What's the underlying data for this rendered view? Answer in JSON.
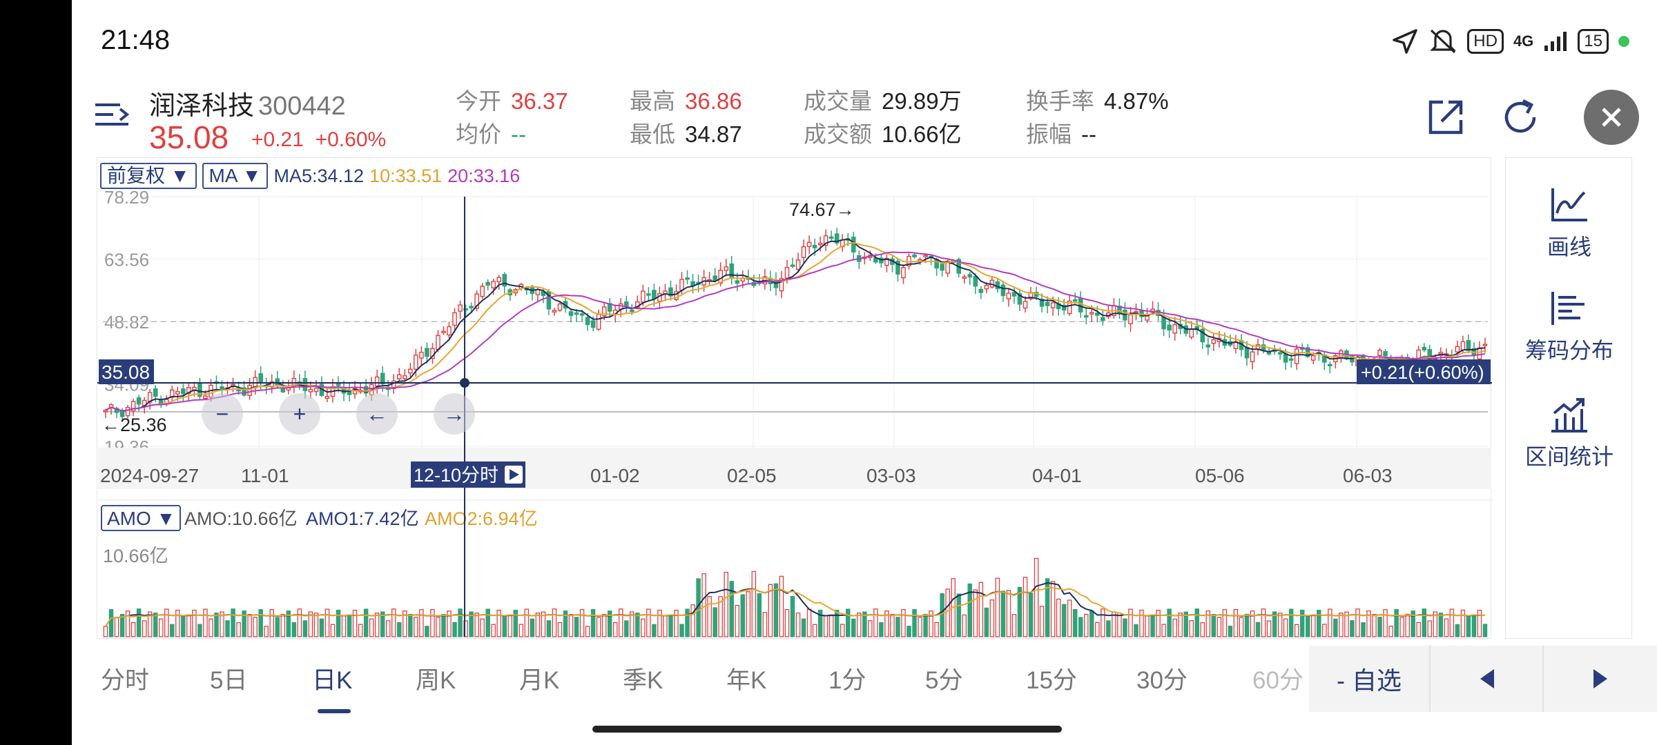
{
  "status_bar": {
    "time": "21:48",
    "network": "4G",
    "hd": "HD",
    "battery": "15"
  },
  "header": {
    "stock_name": "润泽科技",
    "stock_code": "300442",
    "price": "35.08",
    "change": "+0.21",
    "change_pct": "+0.60%",
    "stats": [
      {
        "label": "今开",
        "value": "36.37"
      },
      {
        "label": "均价",
        "value": "--"
      },
      {
        "label": "最高",
        "value": "36.86"
      },
      {
        "label": "最低",
        "value": "34.87"
      },
      {
        "label": "成交量",
        "value": "29.89万"
      },
      {
        "label": "成交额",
        "value": "10.66亿"
      },
      {
        "label": "换手率",
        "value": "4.87%"
      },
      {
        "label": "振幅",
        "value": "--"
      }
    ]
  },
  "chart_toolbar": {
    "adjust": "前复权 ▼",
    "indicator": "MA ▼",
    "ma5": "MA5:34.12",
    "ma10": "10:33.51",
    "ma20": "20:33.16"
  },
  "main_chart": {
    "y_ticks": [
      "78.29",
      "63.56",
      "48.82",
      "34.09",
      "19.36"
    ],
    "x_ticks": [
      "2024-09-27",
      "11-01",
      "12",
      "01-02",
      "02-05",
      "03-03",
      "04-01",
      "05-06",
      "06-03"
    ],
    "cursor_price": "35.08",
    "cursor_change": "+0.21(+0.60%)",
    "cursor_date": "12-10分时",
    "high_annotation": "74.67→",
    "low_annotation": "←25.36",
    "zoom_out": "−",
    "zoom_in": "+",
    "pan_left": "←",
    "pan_right": "→"
  },
  "volume_chart": {
    "indicator": "AMO ▼",
    "amo": "AMO:10.66亿",
    "amo1": "AMO1:7.42亿",
    "amo2": "AMO2:6.94亿",
    "y_max": "10.66亿"
  },
  "right_tools": [
    {
      "label": "画线",
      "icon": "draw-line-icon"
    },
    {
      "label": "筹码分布",
      "icon": "chip-distribution-icon"
    },
    {
      "label": "区间统计",
      "icon": "range-statistics-icon"
    }
  ],
  "tabs": [
    "分时",
    "5日",
    "日K",
    "周K",
    "月K",
    "季K",
    "年K",
    "1分",
    "5分",
    "15分",
    "30分",
    "60分"
  ],
  "active_tab": "日K",
  "bottom_tools": {
    "watchlist": "- 自选"
  },
  "colors": {
    "up": "#e04040",
    "down": "#2fa37a",
    "ma5": "#1f2f5e",
    "ma10": "#e8a62e",
    "ma20": "#b23cc0",
    "accent": "#2a3d7a"
  },
  "chart_data": {
    "type": "candlestick",
    "x_labels": [
      "2024-09-27",
      "11-01",
      "12",
      "01-02",
      "02-05",
      "03-03",
      "04-01",
      "05-06",
      "06-03"
    ],
    "ylim": [
      19.36,
      78.29
    ],
    "highest": 74.67,
    "lowest": 25.36,
    "last_close": 35.08,
    "close_approx": [
      27,
      29,
      31,
      32,
      33,
      33,
      34,
      34,
      33,
      32,
      33,
      34,
      38,
      45,
      52,
      58,
      57,
      55,
      51,
      49,
      52,
      54,
      56,
      58,
      60,
      59,
      57,
      63,
      69,
      67,
      63,
      62,
      64,
      62,
      58,
      56,
      54,
      53,
      52,
      50,
      51,
      50,
      47,
      45,
      43,
      42,
      41,
      41,
      40,
      40,
      40,
      40,
      41,
      42,
      43
    ],
    "volume_ylim": [
      0,
      10.66
    ],
    "volume_unit": "亿"
  }
}
